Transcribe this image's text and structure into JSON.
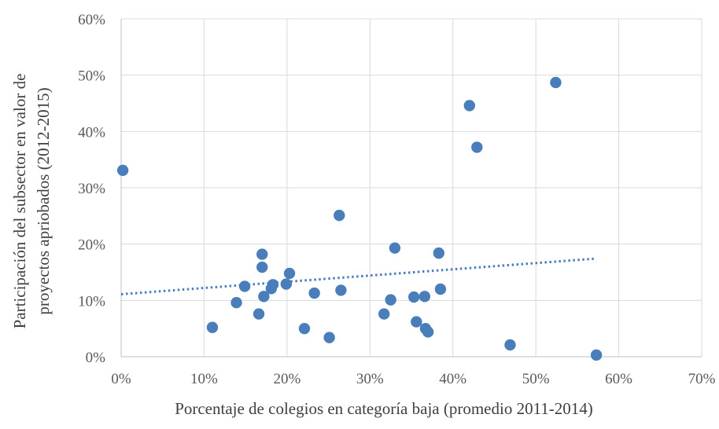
{
  "chart_data": {
    "type": "scatter",
    "xlabel": "Porcentaje de colegios en categoría baja (promedio 2011-2014)",
    "ylabel_lines": [
      "Participación del subsector en valor de",
      "proyectos apriobados (2012-2015)"
    ],
    "xlim": [
      0,
      0.7
    ],
    "ylim": [
      0,
      0.6
    ],
    "x_ticks": [
      0,
      0.1,
      0.2,
      0.3,
      0.4,
      0.5,
      0.6,
      0.7
    ],
    "y_ticks": [
      0,
      0.1,
      0.2,
      0.3,
      0.4,
      0.5,
      0.6
    ],
    "x_tick_labels": [
      "0%",
      "10%",
      "20%",
      "30%",
      "40%",
      "50%",
      "60%",
      "70%"
    ],
    "y_tick_labels": [
      "0%",
      "10%",
      "20%",
      "30%",
      "40%",
      "50%",
      "60%"
    ],
    "grid": true,
    "legend": "none",
    "marker_color": "#4a7ebb",
    "trendline": {
      "type": "linear",
      "x": [
        0,
        0.57
      ],
      "y": [
        0.111,
        0.174
      ],
      "color": "#4a7ebb",
      "style": "dotted"
    },
    "points": [
      {
        "x": 0.002,
        "y": 0.331
      },
      {
        "x": 0.11,
        "y": 0.052
      },
      {
        "x": 0.139,
        "y": 0.096
      },
      {
        "x": 0.149,
        "y": 0.125
      },
      {
        "x": 0.166,
        "y": 0.076
      },
      {
        "x": 0.17,
        "y": 0.182
      },
      {
        "x": 0.17,
        "y": 0.159
      },
      {
        "x": 0.172,
        "y": 0.107
      },
      {
        "x": 0.181,
        "y": 0.121
      },
      {
        "x": 0.183,
        "y": 0.128
      },
      {
        "x": 0.199,
        "y": 0.129
      },
      {
        "x": 0.203,
        "y": 0.148
      },
      {
        "x": 0.221,
        "y": 0.05
      },
      {
        "x": 0.233,
        "y": 0.113
      },
      {
        "x": 0.251,
        "y": 0.034
      },
      {
        "x": 0.263,
        "y": 0.251
      },
      {
        "x": 0.265,
        "y": 0.118
      },
      {
        "x": 0.317,
        "y": 0.076
      },
      {
        "x": 0.325,
        "y": 0.101
      },
      {
        "x": 0.33,
        "y": 0.193
      },
      {
        "x": 0.353,
        "y": 0.106
      },
      {
        "x": 0.356,
        "y": 0.062
      },
      {
        "x": 0.366,
        "y": 0.107
      },
      {
        "x": 0.367,
        "y": 0.05
      },
      {
        "x": 0.37,
        "y": 0.044
      },
      {
        "x": 0.383,
        "y": 0.184
      },
      {
        "x": 0.385,
        "y": 0.12
      },
      {
        "x": 0.42,
        "y": 0.446
      },
      {
        "x": 0.429,
        "y": 0.372
      },
      {
        "x": 0.469,
        "y": 0.021
      },
      {
        "x": 0.524,
        "y": 0.487
      },
      {
        "x": 0.573,
        "y": 0.003
      }
    ]
  }
}
